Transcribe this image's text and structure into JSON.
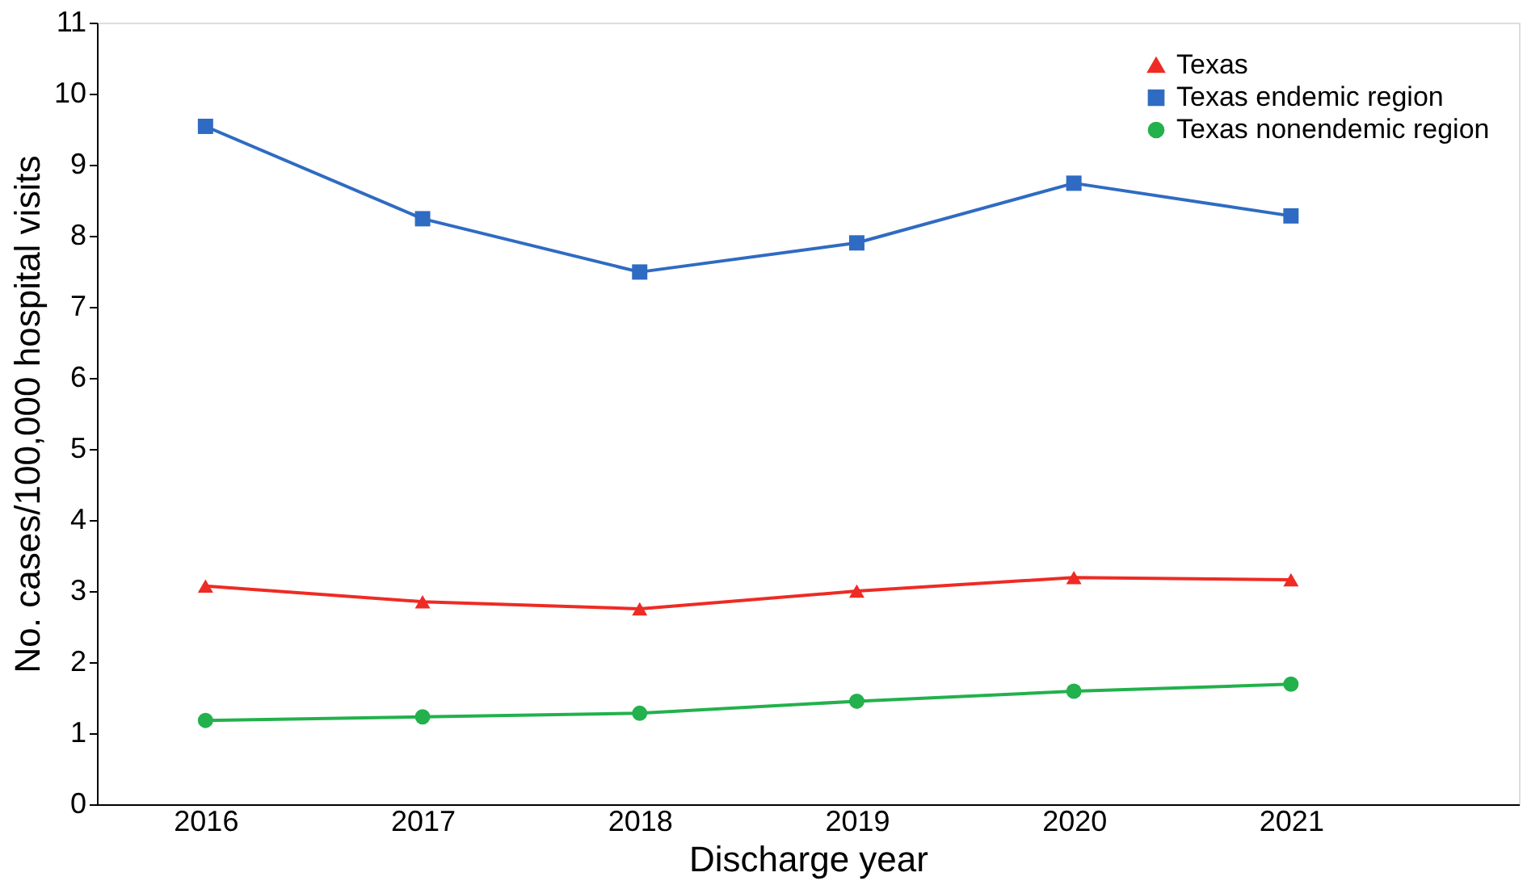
{
  "chart_data": {
    "type": "line",
    "xlabel": "Discharge year",
    "ylabel": "No. cases/100,000 hospital visits",
    "categories": [
      "2016",
      "2017",
      "2018",
      "2019",
      "2020",
      "2021"
    ],
    "series": [
      {
        "name": "Texas",
        "color": "#ee2b24",
        "marker": "triangle",
        "values": [
          3.07,
          2.85,
          2.75,
          3.0,
          3.19,
          3.16
        ]
      },
      {
        "name": "Texas endemic region",
        "color": "#2f6bc2",
        "marker": "square",
        "values": [
          9.54,
          8.24,
          7.49,
          7.9,
          8.74,
          8.28
        ]
      },
      {
        "name": "Texas nonendemic region",
        "color": "#22b14c",
        "marker": "circle",
        "values": [
          1.18,
          1.23,
          1.28,
          1.45,
          1.59,
          1.69
        ]
      }
    ],
    "ylim": [
      0,
      11
    ],
    "yticks": [
      0,
      1,
      2,
      3,
      4,
      5,
      6,
      7,
      8,
      9,
      10,
      11
    ],
    "grid": false,
    "legend": "top right",
    "line_style": "solid"
  }
}
